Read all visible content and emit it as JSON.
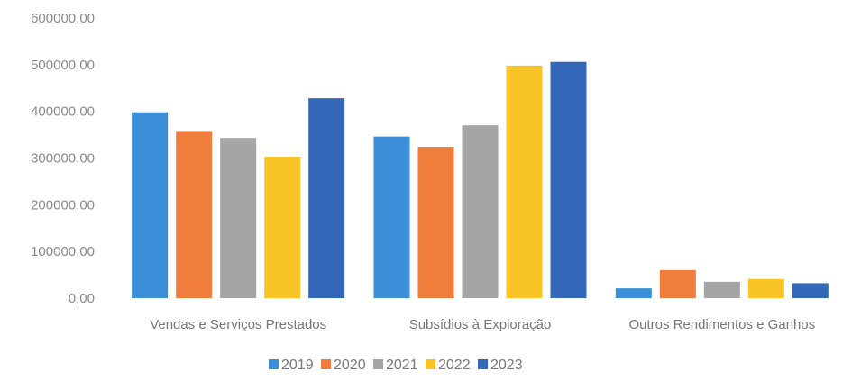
{
  "chart_data": {
    "type": "bar",
    "title": "",
    "xlabel": "",
    "ylabel": "",
    "categories": [
      "Vendas e Serviços Prestados",
      "Subsídios à Exploração",
      "Outros Rendimentos e Ganhos"
    ],
    "series": [
      {
        "name": "2019",
        "color": "#3b8fd8",
        "values": [
          398000,
          346000,
          21000
        ]
      },
      {
        "name": "2020",
        "color": "#ef7d3c",
        "values": [
          358000,
          324000,
          60000
        ]
      },
      {
        "name": "2021",
        "color": "#a5a5a5",
        "values": [
          343000,
          370000,
          35000
        ]
      },
      {
        "name": "2022",
        "color": "#f9c526",
        "values": [
          303000,
          498000,
          41000
        ]
      },
      {
        "name": "2023",
        "color": "#3367b8",
        "values": [
          428000,
          506000,
          32000
        ]
      }
    ],
    "ylim": [
      0,
      600000
    ],
    "y_ticks": [
      "0,00",
      "100000,00",
      "200000,00",
      "300000,00",
      "400000,00",
      "500000,00",
      "600000,00"
    ],
    "grid": false,
    "legend_position": "bottom"
  }
}
